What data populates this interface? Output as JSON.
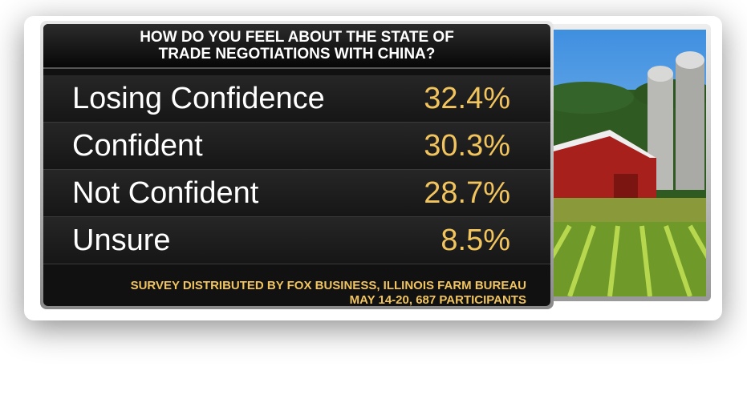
{
  "header": {
    "title_lines": [
      "HOW DO YOU FEEL ABOUT THE STATE OF",
      "TRADE NEGOTIATIONS WITH CHINA?"
    ]
  },
  "table": {
    "rows": [
      [
        "Losing Confidence",
        "32.4%"
      ],
      [
        "Confident",
        "30.3%"
      ],
      [
        "Not Confident",
        "28.7%"
      ],
      [
        "Unsure",
        "8.5%"
      ]
    ]
  },
  "footer": {
    "lines": [
      "SURVEY DISTRIBUTED BY FOX BUSINESS, ILLINOIS FARM BUREAU",
      "MAY 14-20, 687 PARTICIPANTS"
    ]
  }
}
